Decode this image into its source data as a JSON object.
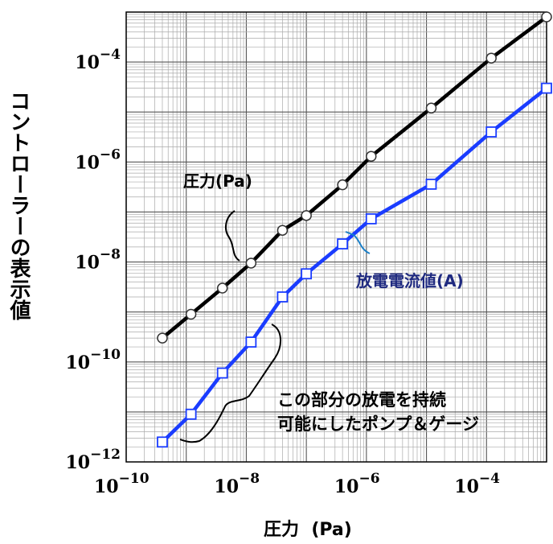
{
  "chart_data": {
    "type": "line",
    "xlabel": "圧力  (Pa)",
    "ylabel": "コントローラーの表示値",
    "x_scale": "log",
    "y_scale": "log",
    "xlim": [
      1e-10,
      0.001
    ],
    "ylim": [
      1e-12,
      0.001
    ],
    "grid": true,
    "x_ticks": [
      {
        "value": 1e-10,
        "base": "10",
        "exp": "−10"
      },
      {
        "value": 1e-08,
        "base": "10",
        "exp": "−8"
      },
      {
        "value": 1e-06,
        "base": "10",
        "exp": "−6"
      },
      {
        "value": 0.0001,
        "base": "10",
        "exp": "−4"
      }
    ],
    "y_ticks": [
      {
        "value": 0.0001,
        "base": "10",
        "exp": "−4"
      },
      {
        "value": 1e-06,
        "base": "10",
        "exp": "−6"
      },
      {
        "value": 1e-08,
        "base": "10",
        "exp": "−8"
      },
      {
        "value": 1e-10,
        "base": "10",
        "exp": "−10"
      },
      {
        "value": 1e-12,
        "base": "10",
        "exp": "−12"
      }
    ],
    "series": [
      {
        "name": "圧力(Pa)",
        "color": "#000000",
        "marker": "circle",
        "points": [
          [
            4e-10,
            3e-10
          ],
          [
            1.2e-09,
            9e-10
          ],
          [
            4e-09,
            3e-09
          ],
          [
            1.2e-08,
            9.5e-09
          ],
          [
            4e-08,
            4.3e-08
          ],
          [
            1e-07,
            8.5e-08
          ],
          [
            4e-07,
            3.5e-07
          ],
          [
            1.2e-06,
            1.3e-06
          ],
          [
            1.2e-05,
            1.2e-05
          ],
          [
            0.00012,
            0.00012
          ],
          [
            0.001,
            0.0008
          ]
        ]
      },
      {
        "name": "放電電流値(A)",
        "color": "#1a3cff",
        "marker": "square",
        "points": [
          [
            4e-10,
            2.5e-12
          ],
          [
            1.2e-09,
            9e-12
          ],
          [
            4e-09,
            6e-11
          ],
          [
            1.2e-08,
            2.5e-10
          ],
          [
            4e-08,
            2e-09
          ],
          [
            1e-07,
            5.8e-09
          ],
          [
            4e-07,
            2.3e-08
          ],
          [
            1.2e-06,
            7.3e-08
          ],
          [
            1.2e-05,
            3.6e-07
          ],
          [
            0.00012,
            4e-06
          ],
          [
            0.001,
            3e-05
          ]
        ]
      }
    ],
    "annotations": [
      {
        "text": "圧力(Pa)",
        "color": "#000000"
      },
      {
        "text": "放電電流値(A)",
        "color": "#1f2a80"
      },
      {
        "text": "この部分の放電を持続",
        "color": "#000000"
      },
      {
        "text": "可能にしたポンプ＆ゲージ",
        "color": "#000000"
      }
    ]
  }
}
